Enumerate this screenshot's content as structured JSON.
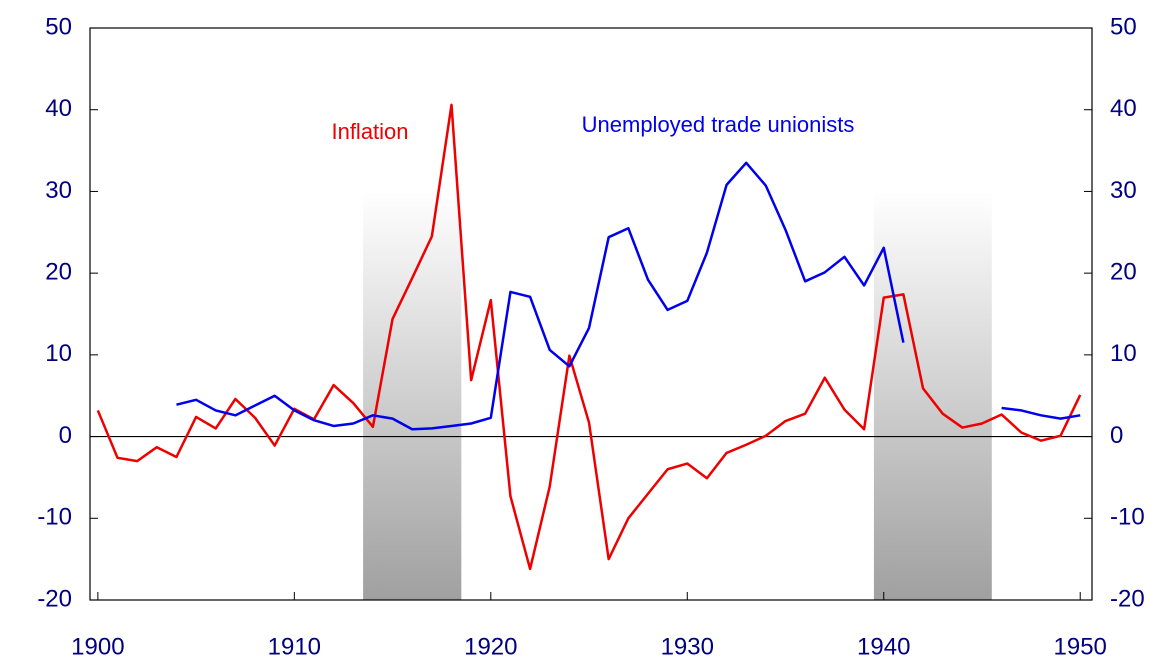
{
  "chart_data": {
    "type": "line",
    "x": [
      1900,
      1901,
      1902,
      1903,
      1904,
      1905,
      1906,
      1907,
      1908,
      1909,
      1910,
      1911,
      1912,
      1913,
      1914,
      1915,
      1916,
      1917,
      1918,
      1919,
      1920,
      1921,
      1922,
      1923,
      1924,
      1925,
      1926,
      1927,
      1928,
      1929,
      1930,
      1931,
      1932,
      1933,
      1934,
      1935,
      1936,
      1937,
      1938,
      1939,
      1940,
      1941,
      1942,
      1943,
      1944,
      1945,
      1946,
      1947,
      1948,
      1949,
      1950
    ],
    "series": [
      {
        "name": "Inflation",
        "color": "#ee0000",
        "axis": "y",
        "values": [
          3.2,
          -2.6,
          -3.0,
          -1.3,
          -2.5,
          2.4,
          1.0,
          4.6,
          2.3,
          -1.1,
          3.4,
          2.1,
          6.3,
          4.1,
          1.2,
          14.4,
          19.4,
          24.5,
          40.6,
          6.9,
          16.7,
          -7.3,
          -16.2,
          -6.1,
          9.9,
          1.7,
          -15.0,
          -10.0,
          -7.0,
          -4.0,
          -3.3,
          -5.1,
          -2.0,
          -1.0,
          0.1,
          1.9,
          2.8,
          7.2,
          3.3,
          0.9,
          17.0,
          17.4,
          5.9,
          2.8,
          1.1,
          1.6,
          2.7,
          0.5,
          -0.5,
          0.1,
          5.1
        ]
      },
      {
        "name": "Unemployed trade unionists",
        "color": "#0000ee",
        "axis": "y",
        "values": [
          null,
          null,
          null,
          null,
          3.9,
          4.5,
          3.2,
          2.6,
          3.8,
          5.0,
          3.2,
          2.0,
          1.3,
          1.6,
          2.6,
          2.2,
          0.9,
          1.0,
          1.3,
          1.6,
          2.3,
          17.7,
          17.1,
          10.6,
          8.6,
          13.3,
          24.4,
          25.5,
          19.2,
          15.5,
          16.6,
          22.5,
          30.8,
          33.5,
          30.7,
          25.3,
          19.0,
          20.1,
          22.0,
          18.5,
          23.1,
          11.5,
          null,
          null,
          null,
          null,
          3.5,
          3.2,
          2.6,
          2.2,
          2.6
        ]
      }
    ],
    "shaded_periods": [
      {
        "start": 1913.5,
        "end": 1918.5,
        "top": 30
      },
      {
        "start": 1939.5,
        "end": 1945.5,
        "top": 30
      }
    ],
    "xlim": [
      1899.6,
      1950.6
    ],
    "xticks": [
      1900,
      1910,
      1920,
      1930,
      1940,
      1950
    ],
    "ylim": [
      -20,
      50
    ],
    "yticks": [
      -20,
      -10,
      0,
      10,
      20,
      30,
      40,
      50
    ],
    "y2lim": [
      -20,
      50
    ],
    "y2ticks": [
      -20,
      -10,
      0,
      10,
      20,
      30,
      40,
      50
    ]
  }
}
